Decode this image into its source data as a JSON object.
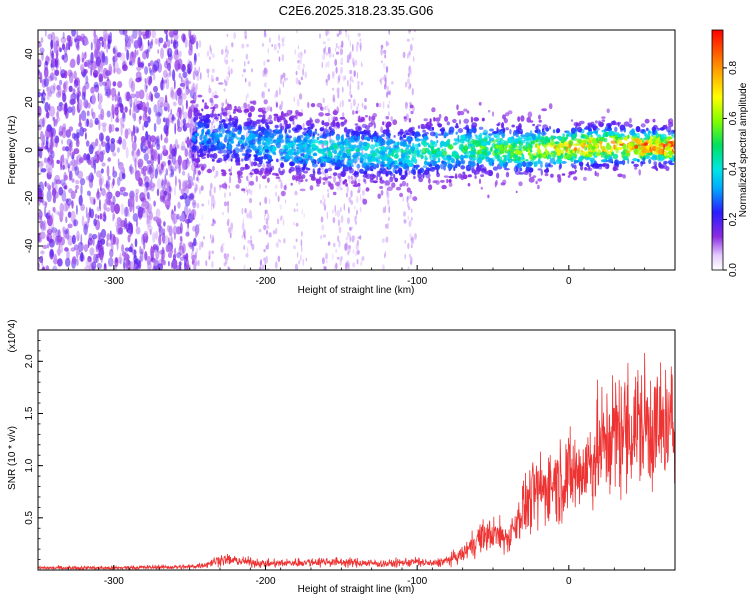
{
  "figure_title": "C2E6.2025.318.23.35.G06",
  "chart_data": [
    {
      "type": "heatmap",
      "title": "C2E6.2025.318.23.35.G06",
      "xlabel": "Height of straight line (km)",
      "ylabel": "Frequency (Hz)",
      "xlim": [
        -350,
        70
      ],
      "ylim": [
        -50,
        50
      ],
      "xticks": [
        -300,
        -200,
        -100,
        0
      ],
      "yticks": [
        -40,
        -20,
        0,
        20,
        40
      ],
      "colorbar": {
        "label": "Normalized spectral amplitude",
        "range": [
          0.0,
          0.95
        ],
        "ticks": [
          "0.0",
          "0.2",
          "0.4",
          "0.6",
          "0.8"
        ],
        "colormap": "rainbow"
      },
      "description_bands": [
        {
          "x_range": [
            -350,
            -245
          ],
          "frequency_spread": [
            -50,
            50
          ],
          "amplitude": 0.1
        },
        {
          "x_range": [
            -245,
            70
          ],
          "center_frequency_hz": [
            6,
            3,
            1,
            0,
            -2,
            0,
            1,
            0,
            1,
            2,
            1
          ],
          "center_x": [
            -245,
            -210,
            -180,
            -150,
            -110,
            -90,
            -60,
            -30,
            0,
            30,
            70
          ],
          "amplitude": [
            0.2,
            0.25,
            0.3,
            0.35,
            0.35,
            0.4,
            0.45,
            0.55,
            0.7,
            0.75,
            0.85
          ]
        }
      ],
      "grid": false
    },
    {
      "type": "line",
      "xlabel": "Height of straight line (km)",
      "ylabel": "SNR (10 * v/v)",
      "y_multiplier": "(x10^4)",
      "xlim": [
        -350,
        70
      ],
      "ylim": [
        0,
        2.3
      ],
      "xticks": [
        -300,
        -200,
        -100,
        0
      ],
      "yticks": [
        "0.5",
        "1.0",
        "1.5",
        "2.0"
      ],
      "series": [
        {
          "color": "#ee3333",
          "x": [
            -350,
            -300,
            -250,
            -240,
            -230,
            -220,
            -200,
            -180,
            -160,
            -140,
            -120,
            -100,
            -90,
            -80,
            -70,
            -60,
            -50,
            -40,
            -30,
            -20,
            -10,
            0,
            10,
            20,
            30,
            40,
            50,
            60,
            70
          ],
          "values": [
            0.02,
            0.02,
            0.03,
            0.05,
            0.1,
            0.09,
            0.06,
            0.07,
            0.08,
            0.07,
            0.06,
            0.08,
            0.06,
            0.09,
            0.15,
            0.3,
            0.35,
            0.3,
            0.6,
            0.75,
            0.85,
            0.9,
            0.95,
            1.15,
            1.3,
            1.35,
            1.4,
            1.35,
            1.35
          ]
        }
      ],
      "grid": false
    }
  ]
}
